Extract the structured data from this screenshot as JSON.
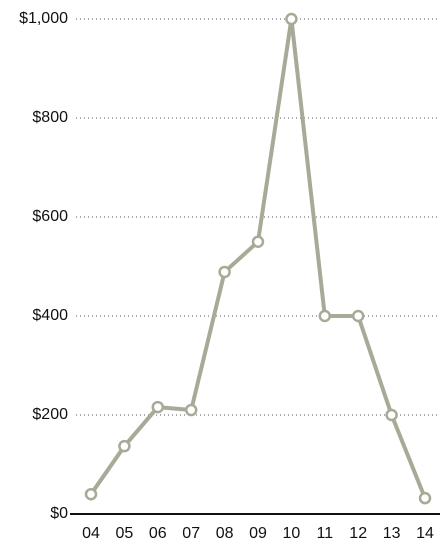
{
  "chart_data": {
    "type": "line",
    "categories": [
      "04",
      "05",
      "06",
      "07",
      "08",
      "09",
      "10",
      "11",
      "12",
      "13",
      "14"
    ],
    "values": [
      40,
      137,
      216,
      210,
      489,
      550,
      1000,
      400,
      400,
      200,
      32
    ],
    "color": "#a8aa97",
    "ylim": [
      0,
      1000
    ],
    "yticks": [
      {
        "value": 0,
        "label": "$0"
      },
      {
        "value": 200,
        "label": "$200"
      },
      {
        "value": 400,
        "label": "$400"
      },
      {
        "value": 600,
        "label": "$600"
      },
      {
        "value": 800,
        "label": "$800"
      },
      {
        "value": 1000,
        "label": "$1,000"
      }
    ],
    "grid": true
  }
}
